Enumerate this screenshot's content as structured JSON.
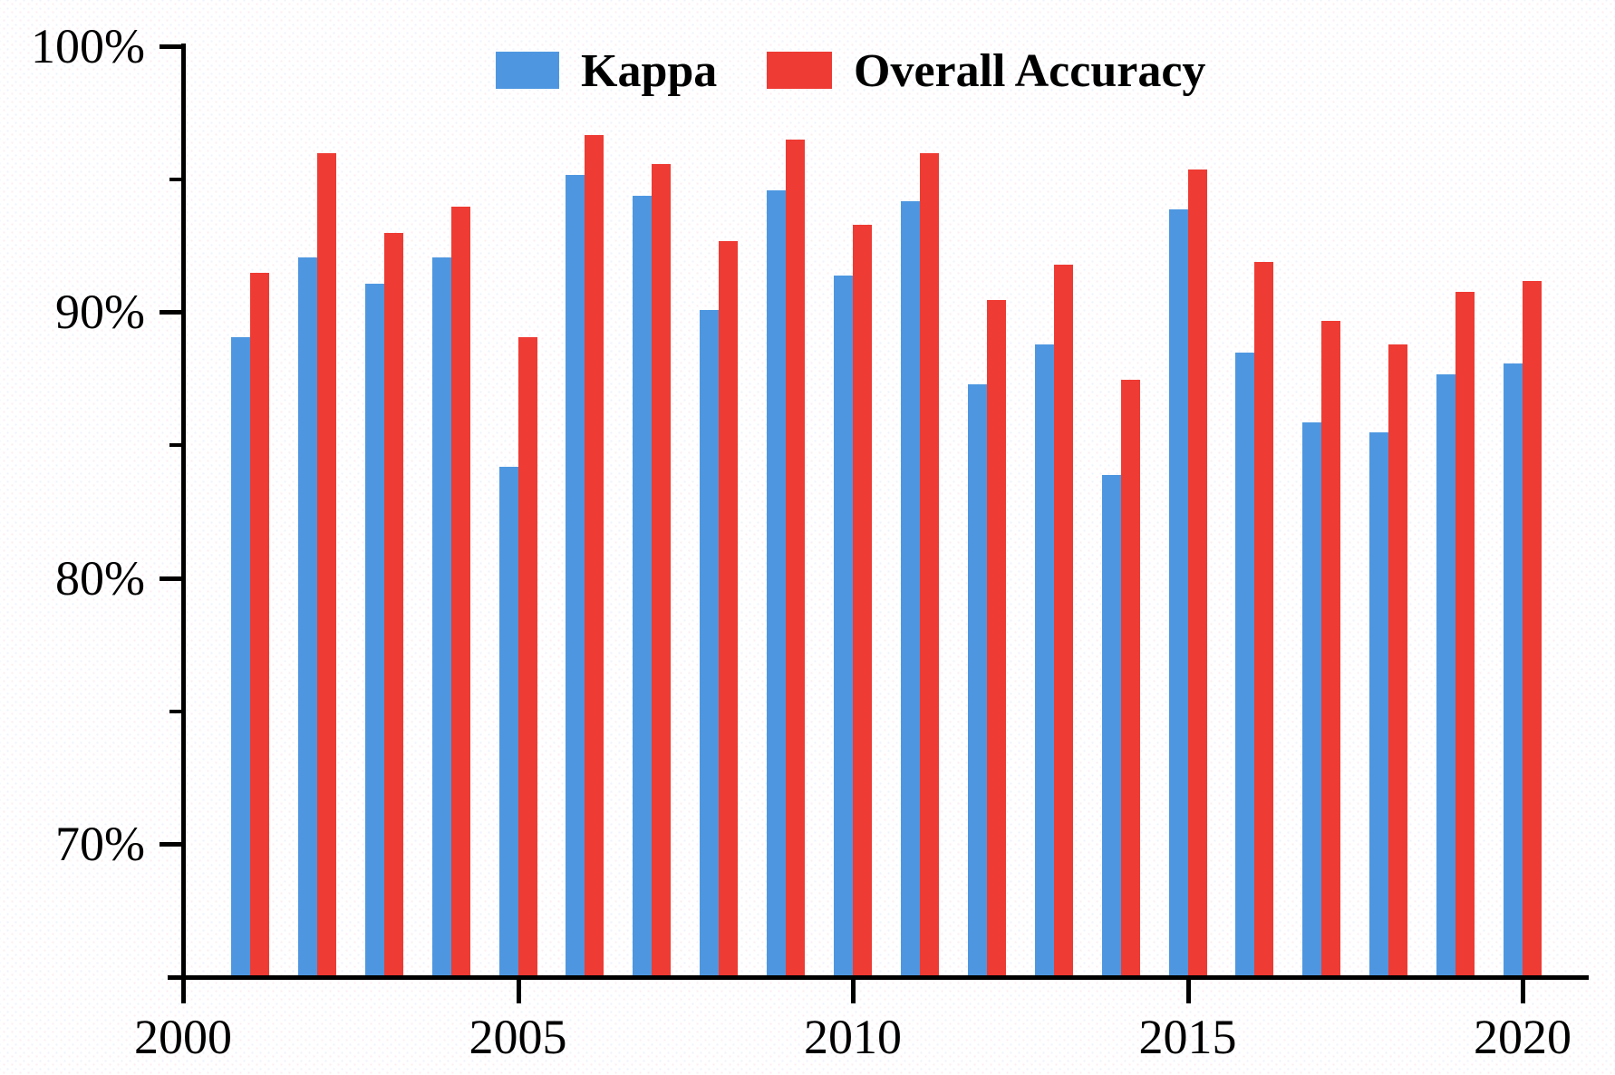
{
  "legend": {
    "kappa_label": "Kappa",
    "overall_label": "Overall Accuracy"
  },
  "colors": {
    "kappa": "#4E97E0",
    "overall": "#EE3B33",
    "axis": "#000000"
  },
  "y_axis": {
    "major_ticks": [
      {
        "value": 100,
        "label": "100%"
      },
      {
        "value": 90,
        "label": "90%"
      },
      {
        "value": 80,
        "label": "80%"
      },
      {
        "value": 70,
        "label": "70%"
      }
    ],
    "minor_tick_values": [
      95,
      85,
      75
    ],
    "range": [
      65,
      100
    ]
  },
  "x_axis": {
    "ticks": [
      {
        "value": 2000,
        "label": "2000"
      },
      {
        "value": 2005,
        "label": "2005"
      },
      {
        "value": 2010,
        "label": "2010"
      },
      {
        "value": 2015,
        "label": "2015"
      },
      {
        "value": 2020,
        "label": "2020"
      }
    ],
    "range": [
      2000,
      2021
    ]
  },
  "chart_data": {
    "type": "bar",
    "title": "",
    "xlabel": "",
    "ylabel": "",
    "ylim": [
      65,
      100
    ],
    "grid": false,
    "legend_position": "top-center",
    "categories": [
      2001,
      2002,
      2003,
      2004,
      2005,
      2006,
      2007,
      2008,
      2009,
      2010,
      2011,
      2012,
      2013,
      2014,
      2015,
      2016,
      2017,
      2018,
      2019,
      2020
    ],
    "series": [
      {
        "name": "Kappa",
        "color": "#4E97E0",
        "values": [
          89.1,
          92.1,
          91.1,
          92.1,
          84.2,
          95.2,
          94.4,
          90.1,
          94.6,
          91.4,
          94.2,
          87.3,
          88.8,
          83.9,
          93.9,
          88.5,
          85.9,
          85.5,
          87.7,
          88.1
        ]
      },
      {
        "name": "Overall Accuracy",
        "color": "#EE3B33",
        "values": [
          91.5,
          96.0,
          93.0,
          94.0,
          89.1,
          96.7,
          95.6,
          92.7,
          96.5,
          93.3,
          96.0,
          90.5,
          91.8,
          87.5,
          95.4,
          91.9,
          89.7,
          88.8,
          90.8,
          91.2
        ]
      }
    ],
    "value_unit": "%"
  }
}
